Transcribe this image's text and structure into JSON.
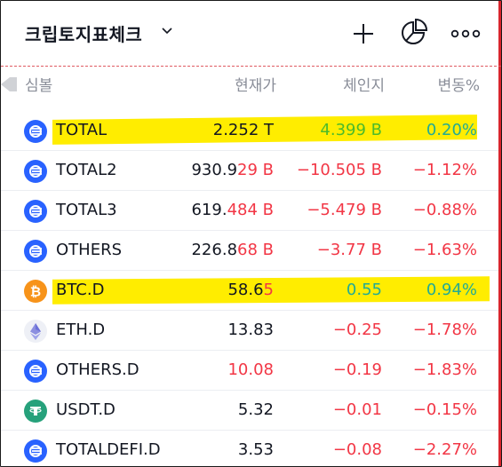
{
  "header": {
    "title": "크립토지표체크"
  },
  "columns": {
    "symbol": "심볼",
    "price": "현재가",
    "change": "체인지",
    "pct": "변동%"
  },
  "rows": [
    {
      "symbol": "TOTAL",
      "price_a": "2.252",
      "price_b": " T",
      "change": "4.399 B",
      "pct": "0.20%",
      "icon": "total-market-icon",
      "dir": "pos",
      "highlight": true
    },
    {
      "symbol": "TOTAL2",
      "price_a": "930.9",
      "price_b": "29 B",
      "change": "−10.505 B",
      "pct": "−1.12%",
      "icon": "total-market-icon",
      "dir": "neg",
      "highlight": false
    },
    {
      "symbol": "TOTAL3",
      "price_a": "619.",
      "price_b": "484 B",
      "change": "−5.479 B",
      "pct": "−0.88%",
      "icon": "total-market-icon",
      "dir": "neg",
      "highlight": false
    },
    {
      "symbol": "OTHERS",
      "price_a": "226.8",
      "price_b": "68 B",
      "change": "−3.77 B",
      "pct": "−1.63%",
      "icon": "total-market-icon",
      "dir": "neg",
      "highlight": false
    },
    {
      "symbol": "BTC.D",
      "price_a": "58.6",
      "price_b": "5",
      "change": "0.55",
      "pct": "0.94%",
      "icon": "bitcoin-icon",
      "dir": "pos",
      "highlight": true
    },
    {
      "symbol": "ETH.D",
      "price_a": "13.83",
      "price_b": "",
      "change": "−0.25",
      "pct": "−1.78%",
      "icon": "ethereum-icon",
      "dir": "neg",
      "highlight": false
    },
    {
      "symbol": "OTHERS.D",
      "price_a": "",
      "price_b": "10.08",
      "change": "−0.19",
      "pct": "−1.83%",
      "icon": "total-market-icon",
      "dir": "neg",
      "highlight": false
    },
    {
      "symbol": "USDT.D",
      "price_a": "5.32",
      "price_b": "",
      "change": "−0.01",
      "pct": "−0.15%",
      "icon": "tether-icon",
      "dir": "neg",
      "highlight": false
    },
    {
      "symbol": "TOTALDEFI.D",
      "price_a": "3.53",
      "price_b": "",
      "change": "−0.08",
      "pct": "−2.27%",
      "icon": "total-market-icon",
      "dir": "neg",
      "highlight": false
    }
  ],
  "colors": {
    "positive": "#22ab94",
    "negative": "#f23645",
    "highlight": "#ffed00",
    "icon_blue": "#2962ff",
    "bitcoin_orange": "#f7931a",
    "tether_teal": "#26a17b"
  }
}
